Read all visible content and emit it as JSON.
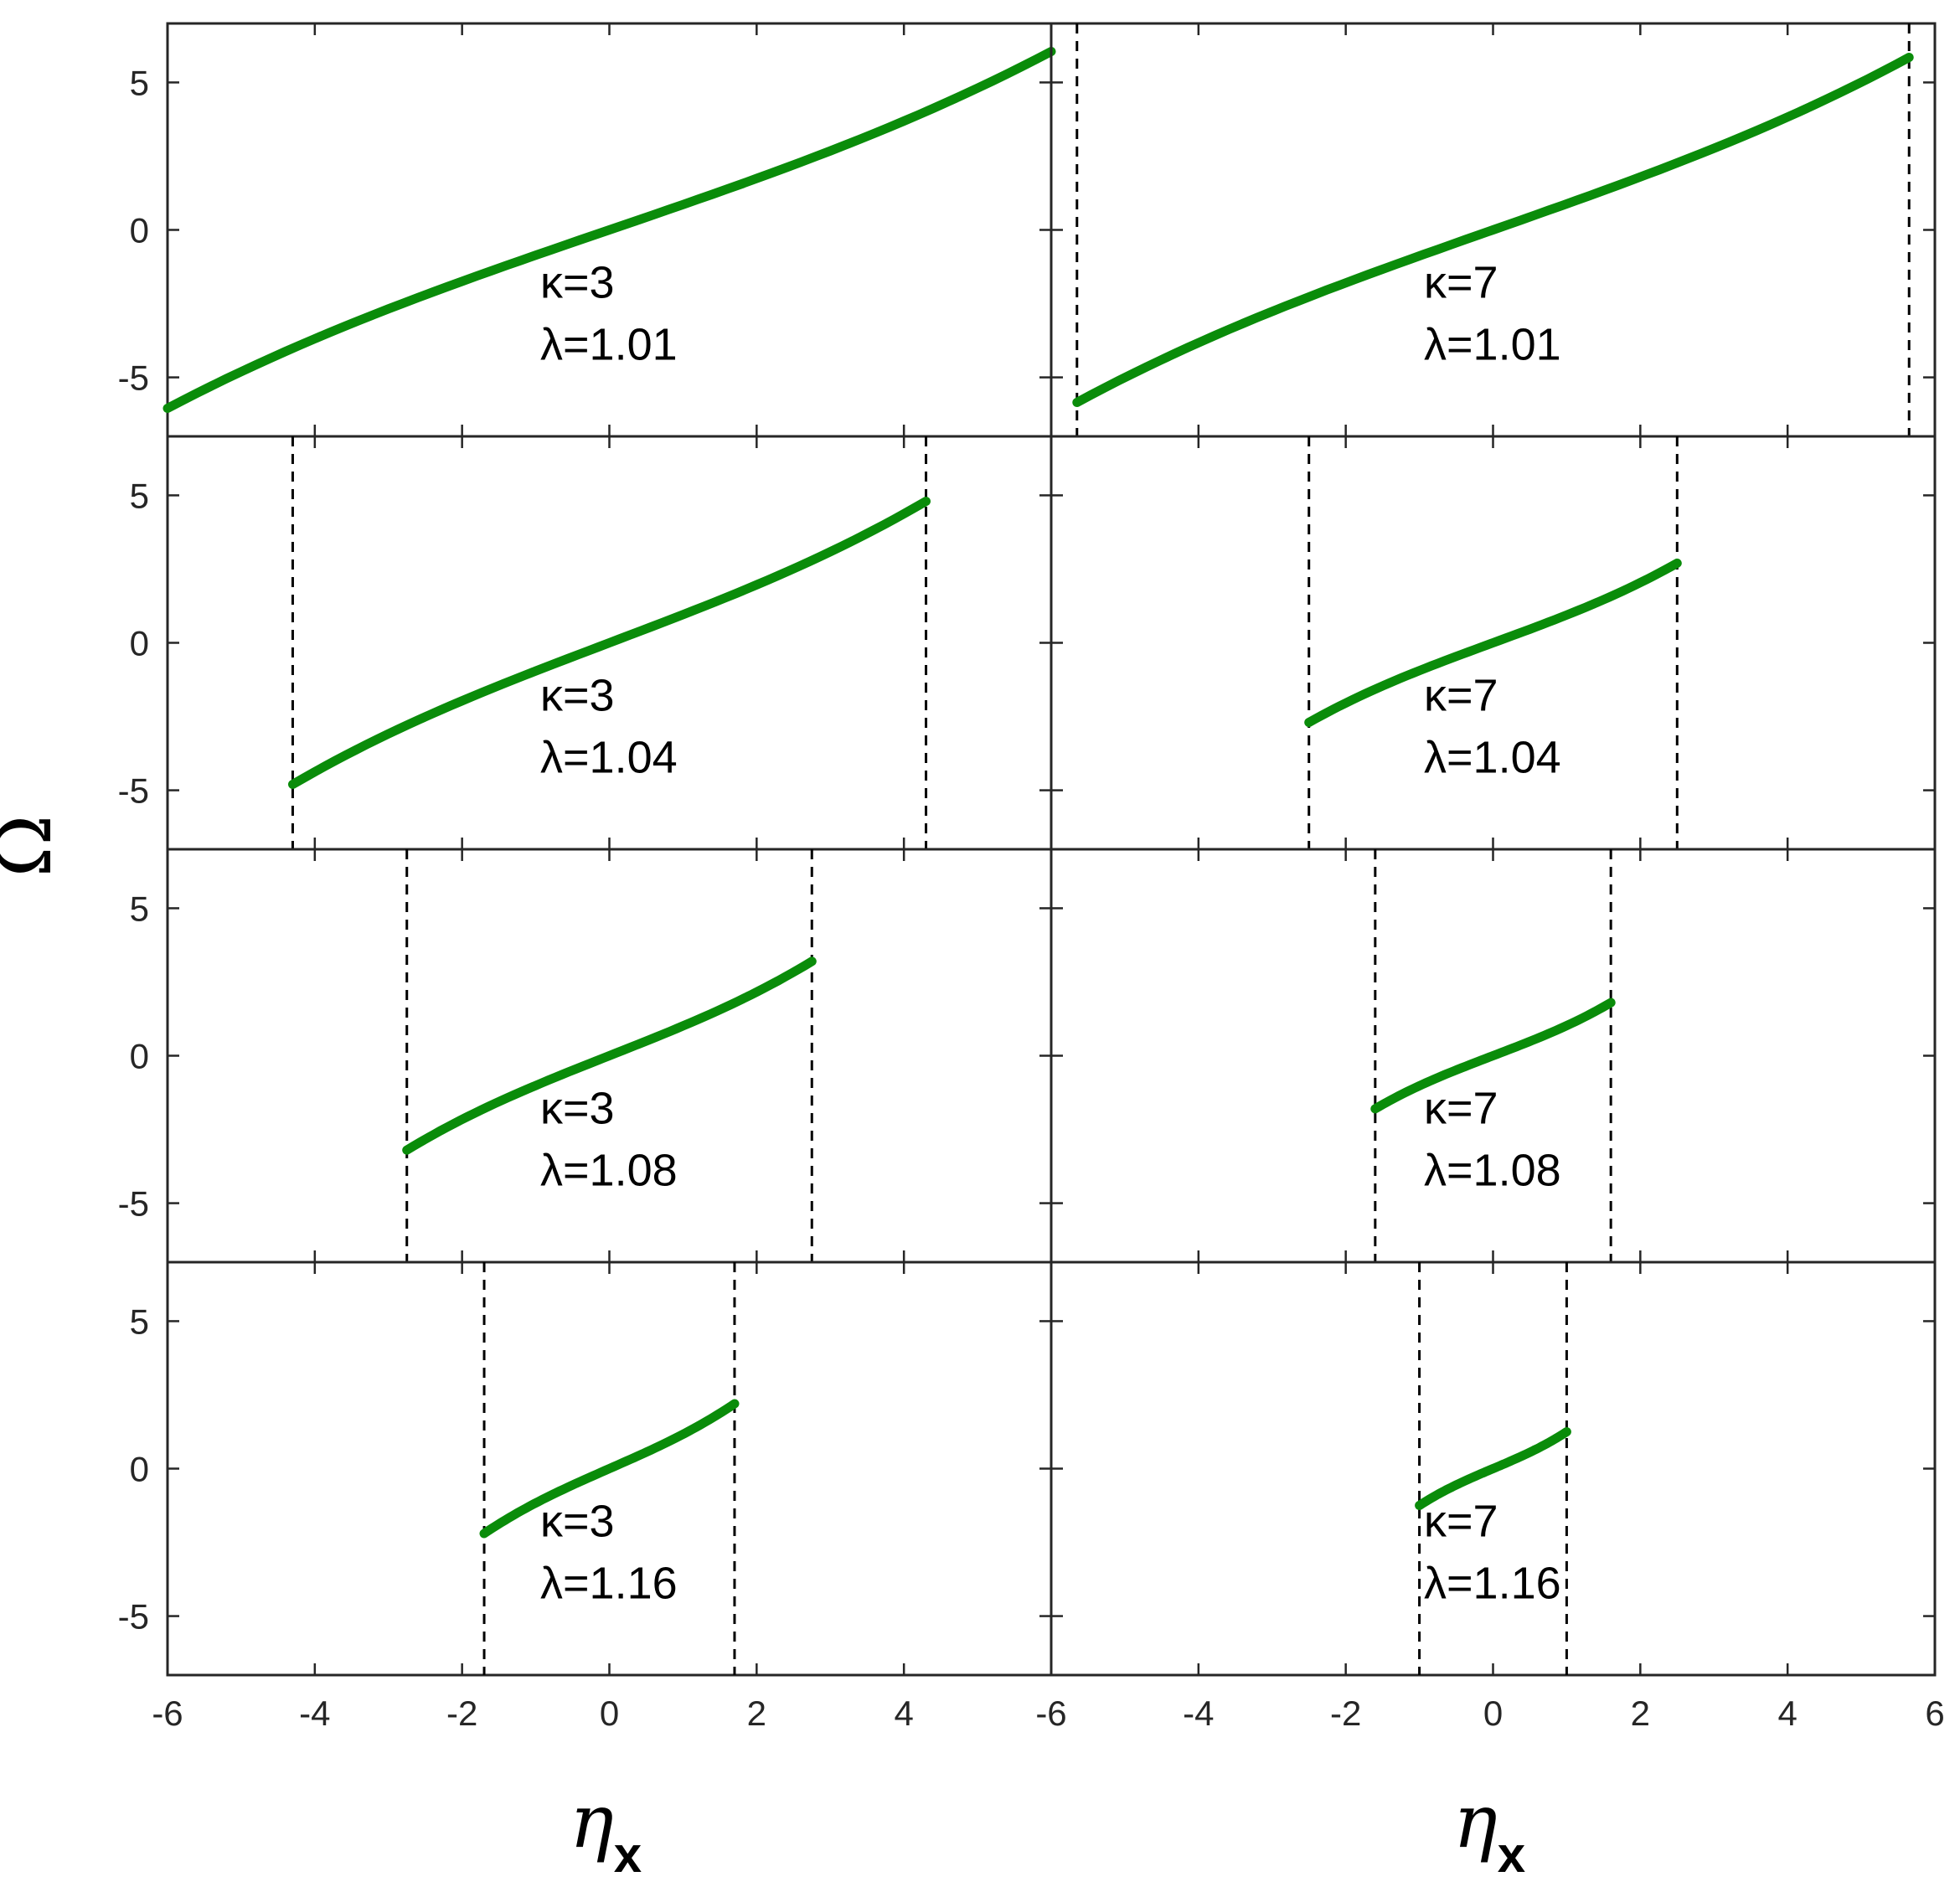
{
  "chart_data": {
    "type": "line",
    "layout": "4x2 grid of panels",
    "line_color": "#0a8c0a",
    "xlim": [
      -6,
      6
    ],
    "ylim": [
      -7,
      7
    ],
    "xticks": [
      -6,
      -4,
      -2,
      0,
      2,
      4
    ],
    "xticks_last_col": [
      -6,
      -4,
      -2,
      0,
      2,
      4,
      6
    ],
    "yticks": [
      5,
      0,
      -5
    ],
    "xlabel": "η",
    "xlabel_sub": "x",
    "ylabel": "Ω",
    "panels": [
      {
        "kappa_label": "κ=3",
        "lambda_label": "λ=1.01",
        "x_range": [
          -6,
          6
        ],
        "y_range": [
          -6.05,
          6.05
        ],
        "boundaries": []
      },
      {
        "kappa_label": "κ=7",
        "lambda_label": "λ=1.01",
        "x_range": [
          -5.65,
          5.65
        ],
        "y_range": [
          -5.85,
          5.85
        ],
        "boundaries": [
          -5.65,
          5.65
        ]
      },
      {
        "kappa_label": "κ=3",
        "lambda_label": "λ=1.04",
        "x_range": [
          -4.3,
          4.3
        ],
        "y_range": [
          -4.8,
          4.8
        ],
        "boundaries": [
          -4.3,
          4.3
        ]
      },
      {
        "kappa_label": "κ=7",
        "lambda_label": "λ=1.04",
        "x_range": [
          -2.5,
          2.5
        ],
        "y_range": [
          -2.7,
          2.7
        ],
        "boundaries": [
          -2.5,
          2.5
        ]
      },
      {
        "kappa_label": "κ=3",
        "lambda_label": "λ=1.08",
        "x_range": [
          -2.75,
          2.75
        ],
        "y_range": [
          -3.2,
          3.2
        ],
        "boundaries": [
          -2.75,
          2.75
        ]
      },
      {
        "kappa_label": "κ=7",
        "lambda_label": "λ=1.08",
        "x_range": [
          -1.6,
          1.6
        ],
        "y_range": [
          -1.8,
          1.8
        ],
        "boundaries": [
          -1.6,
          1.6
        ]
      },
      {
        "kappa_label": "κ=3",
        "lambda_label": "λ=1.16",
        "x_range": [
          -1.7,
          1.7
        ],
        "y_range": [
          -2.2,
          2.2
        ],
        "boundaries": [
          -1.7,
          1.7
        ]
      },
      {
        "kappa_label": "κ=7",
        "lambda_label": "λ=1.16",
        "x_range": [
          -1.0,
          1.0
        ],
        "y_range": [
          -1.25,
          1.25
        ],
        "boundaries": [
          -1.0,
          1.0
        ]
      }
    ]
  }
}
